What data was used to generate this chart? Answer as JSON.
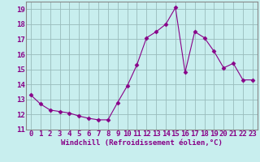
{
  "x": [
    0,
    1,
    2,
    3,
    4,
    5,
    6,
    7,
    8,
    9,
    10,
    11,
    12,
    13,
    14,
    15,
    16,
    17,
    18,
    19,
    20,
    21,
    22,
    23
  ],
  "y": [
    13.3,
    12.7,
    12.3,
    12.2,
    12.1,
    11.9,
    11.75,
    11.65,
    11.65,
    12.8,
    13.9,
    15.3,
    17.1,
    17.5,
    18.0,
    19.1,
    14.8,
    17.5,
    17.1,
    16.2,
    15.1,
    15.4,
    14.3,
    14.3
  ],
  "line_color": "#880088",
  "marker": "D",
  "marker_size": 2.5,
  "bg_color": "#c8eeee",
  "grid_color": "#99bbbb",
  "xlabel": "Windchill (Refroidissement éolien,°C)",
  "ylim": [
    11,
    19.5
  ],
  "xlim": [
    -0.5,
    23.5
  ],
  "yticks": [
    11,
    12,
    13,
    14,
    15,
    16,
    17,
    18,
    19
  ],
  "xticks": [
    0,
    1,
    2,
    3,
    4,
    5,
    6,
    7,
    8,
    9,
    10,
    11,
    12,
    13,
    14,
    15,
    16,
    17,
    18,
    19,
    20,
    21,
    22,
    23
  ],
  "xlabel_fontsize": 6.5,
  "tick_fontsize": 6.5,
  "tick_color": "#880088",
  "axis_color": "#880088",
  "spine_color": "#888888"
}
